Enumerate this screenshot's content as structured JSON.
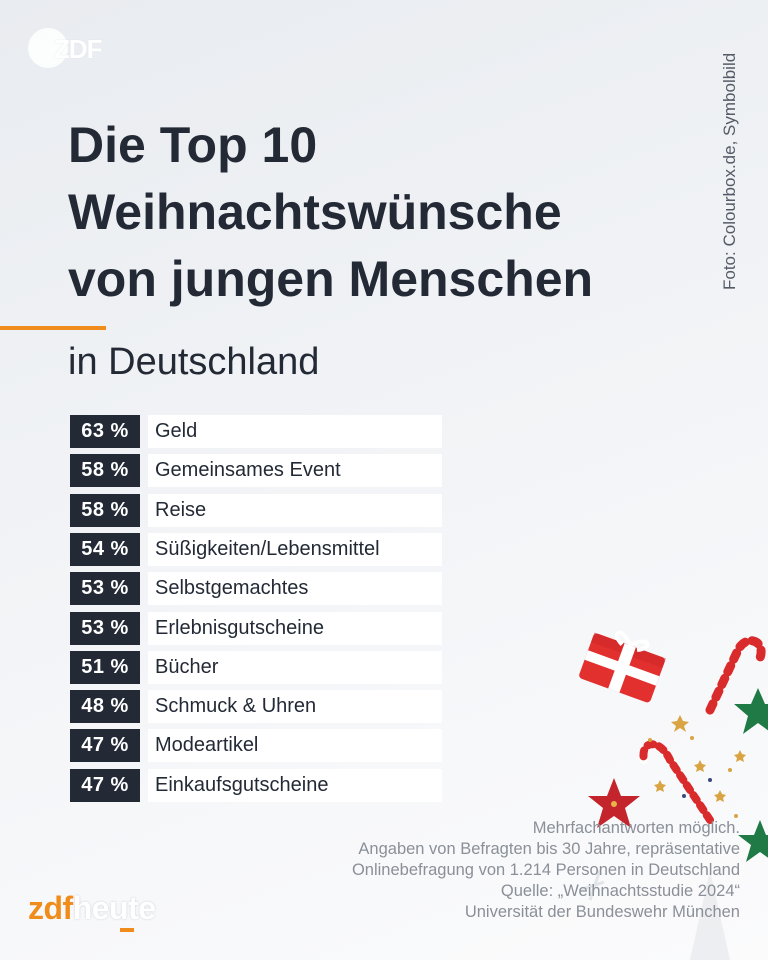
{
  "logo_top": "ZDF",
  "photo_credit": "Foto: Colourbox.de, Symbolbild",
  "title_lines": [
    "Die Top 10",
    "Weihnachtswünsche",
    "von jungen Menschen"
  ],
  "subtitle": "in Deutschland",
  "chart_data": {
    "type": "bar",
    "title": "Die Top 10 Weihnachtswünsche von jungen Menschen",
    "subtitle": "in Deutschland",
    "categories": [
      "Geld",
      "Gemeinsames Event",
      "Reise",
      "Süßigkeiten/Lebensmittel",
      "Selbstgemachtes",
      "Erlebnisgutscheine",
      "Bücher",
      "Schmuck & Uhren",
      "Modeartikel",
      "Einkaufsgutscheine"
    ],
    "values": [
      63,
      58,
      58,
      54,
      53,
      53,
      51,
      48,
      47,
      47
    ],
    "value_labels": [
      "63 %",
      "58 %",
      "58 %",
      "54 %",
      "53 %",
      "53 %",
      "51 %",
      "48 %",
      "47 %",
      "47 %"
    ],
    "unit": "%",
    "colors": {
      "value_box": "#232a36",
      "label_box": "#ffffff",
      "accent": "#f08c1c"
    }
  },
  "footnote_lines": [
    "Mehrfachantworten möglich.",
    "Angaben von Befragten bis 30 Jahre, repräsentative",
    "Onlinebefragung von 1.214 Personen in Deutschland",
    "Quelle: „Weihnachtsstudie 2024“",
    "Universität der Bundeswehr München"
  ],
  "brand": {
    "part1": "zdf",
    "part2": "heute"
  },
  "decoration_icons": [
    "gift-icon",
    "candy-cane-icon",
    "star-icon"
  ]
}
